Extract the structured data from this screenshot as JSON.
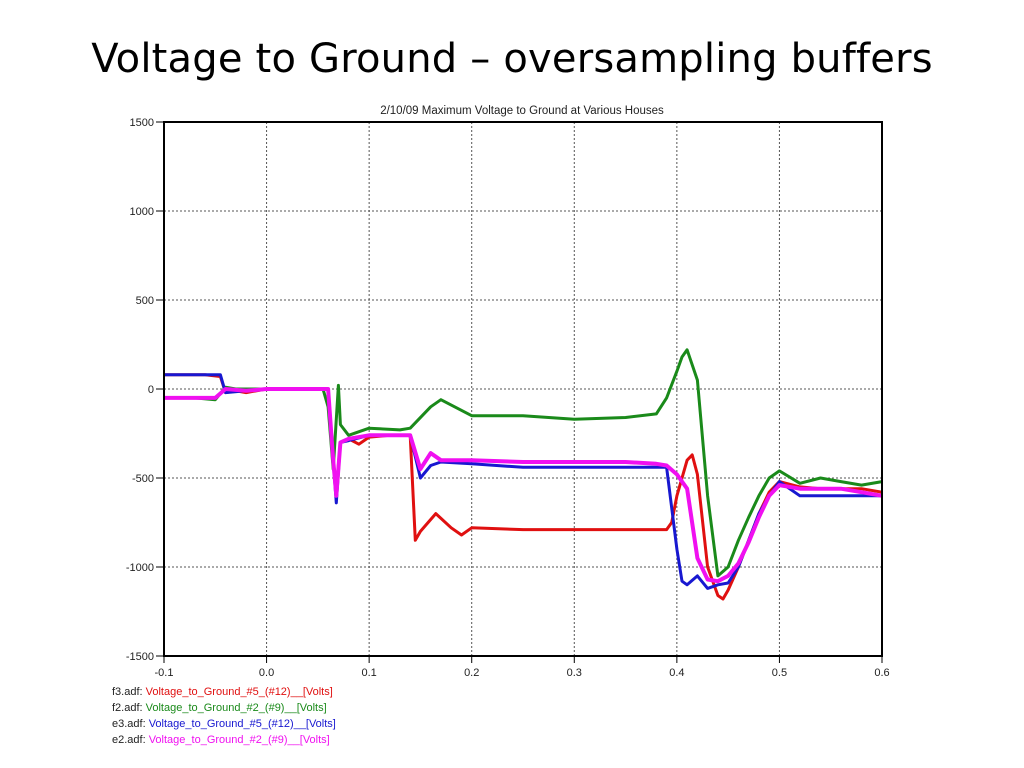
{
  "slide": {
    "title": "Voltage to Ground – oversampling buffers"
  },
  "chart_data": {
    "type": "line",
    "title": "2/10/09  Maximum Voltage to Ground at Various Houses",
    "xlim": [
      -0.1,
      0.6
    ],
    "ylim": [
      -1500,
      1500
    ],
    "x_ticks": [
      -0.1,
      0.0,
      0.1,
      0.2,
      0.3,
      0.4,
      0.5,
      0.6
    ],
    "x_tick_labels": [
      "-0.1",
      "0.0",
      "0.1",
      "0.2",
      "0.3",
      "0.4",
      "0.5",
      "0.6"
    ],
    "y_ticks": [
      1500,
      1000,
      500,
      0,
      -500,
      -1000,
      -1500
    ],
    "y_tick_labels": [
      "1500",
      "1000",
      "500",
      "0",
      "-500",
      "-1000",
      "-1500"
    ],
    "grid": true,
    "legend_position": "bottom-left",
    "series": [
      {
        "file": "f3.adf:",
        "name": "Voltage_to_Ground_#5_(#12)__[Volts]",
        "color": "#e01010",
        "x": [
          -0.1,
          -0.07,
          -0.06,
          -0.045,
          -0.04,
          -0.03,
          -0.02,
          0.0,
          0.03,
          0.06,
          0.065,
          0.068,
          0.072,
          0.08,
          0.09,
          0.1,
          0.12,
          0.14,
          0.145,
          0.15,
          0.165,
          0.18,
          0.19,
          0.2,
          0.25,
          0.3,
          0.35,
          0.39,
          0.395,
          0.4,
          0.41,
          0.415,
          0.42,
          0.43,
          0.44,
          0.445,
          0.45,
          0.46,
          0.47,
          0.48,
          0.49,
          0.5,
          0.52,
          0.54,
          0.56,
          0.58,
          0.6
        ],
        "y": [
          80,
          80,
          80,
          70,
          -20,
          -10,
          -20,
          0,
          0,
          0,
          -400,
          -560,
          -300,
          -280,
          -310,
          -270,
          -260,
          -260,
          -850,
          -800,
          -700,
          -780,
          -820,
          -780,
          -790,
          -790,
          -790,
          -790,
          -750,
          -600,
          -400,
          -370,
          -480,
          -1000,
          -1160,
          -1180,
          -1130,
          -1000,
          -850,
          -700,
          -580,
          -520,
          -550,
          -560,
          -560,
          -560,
          -580
        ]
      },
      {
        "file": "f2.adf:",
        "name": "Voltage_to_Ground_#2_(#9)__[Volts]",
        "color": "#1a8a1a",
        "x": [
          -0.1,
          -0.07,
          -0.05,
          -0.04,
          -0.03,
          0.0,
          0.03,
          0.055,
          0.06,
          0.065,
          0.07,
          0.072,
          0.08,
          0.1,
          0.13,
          0.14,
          0.16,
          0.17,
          0.2,
          0.25,
          0.3,
          0.35,
          0.38,
          0.39,
          0.4,
          0.405,
          0.41,
          0.42,
          0.43,
          0.44,
          0.45,
          0.46,
          0.47,
          0.48,
          0.49,
          0.5,
          0.52,
          0.54,
          0.56,
          0.58,
          0.6
        ],
        "y": [
          -50,
          -50,
          -60,
          10,
          0,
          0,
          0,
          0,
          -100,
          -450,
          20,
          -200,
          -260,
          -220,
          -230,
          -220,
          -100,
          -60,
          -150,
          -150,
          -170,
          -160,
          -140,
          -50,
          100,
          180,
          220,
          50,
          -600,
          -1050,
          -1000,
          -850,
          -720,
          -600,
          -500,
          -460,
          -530,
          -500,
          -520,
          -540,
          -520
        ]
      },
      {
        "file": "e3.adf:",
        "name": "Voltage_to_Ground_#5_(#12)__[Volts]",
        "color": "#1818d0",
        "x": [
          -0.1,
          -0.07,
          -0.045,
          -0.04,
          -0.02,
          0.0,
          0.03,
          0.06,
          0.065,
          0.068,
          0.072,
          0.08,
          0.1,
          0.14,
          0.15,
          0.16,
          0.17,
          0.2,
          0.25,
          0.3,
          0.35,
          0.38,
          0.39,
          0.4,
          0.405,
          0.41,
          0.42,
          0.43,
          0.44,
          0.45,
          0.46,
          0.47,
          0.48,
          0.49,
          0.5,
          0.52,
          0.54,
          0.56,
          0.58,
          0.6
        ],
        "y": [
          80,
          80,
          80,
          -20,
          -10,
          0,
          0,
          0,
          -400,
          -640,
          -300,
          -290,
          -260,
          -260,
          -500,
          -430,
          -410,
          -420,
          -440,
          -440,
          -440,
          -440,
          -440,
          -900,
          -1080,
          -1100,
          -1050,
          -1120,
          -1100,
          -1090,
          -1000,
          -850,
          -700,
          -600,
          -520,
          -600,
          -600,
          -600,
          -600,
          -600
        ]
      },
      {
        "file": "e2.adf:",
        "name": "Voltage_to_Ground_#2_(#9)__[Volts]",
        "color": "#f010f0",
        "x": [
          -0.1,
          -0.07,
          -0.05,
          -0.04,
          -0.02,
          0.0,
          0.03,
          0.06,
          0.065,
          0.068,
          0.072,
          0.08,
          0.1,
          0.14,
          0.15,
          0.16,
          0.17,
          0.2,
          0.25,
          0.3,
          0.35,
          0.38,
          0.39,
          0.4,
          0.41,
          0.42,
          0.43,
          0.44,
          0.45,
          0.46,
          0.47,
          0.48,
          0.49,
          0.5,
          0.52,
          0.54,
          0.56,
          0.58,
          0.6
        ],
        "y": [
          -50,
          -50,
          -50,
          0,
          -10,
          0,
          0,
          0,
          -400,
          -600,
          -300,
          -280,
          -260,
          -260,
          -450,
          -360,
          -400,
          -400,
          -410,
          -410,
          -410,
          -420,
          -430,
          -480,
          -560,
          -950,
          -1070,
          -1080,
          -1050,
          -980,
          -860,
          -720,
          -600,
          -540,
          -560,
          -560,
          -560,
          -580,
          -600
        ]
      }
    ]
  }
}
